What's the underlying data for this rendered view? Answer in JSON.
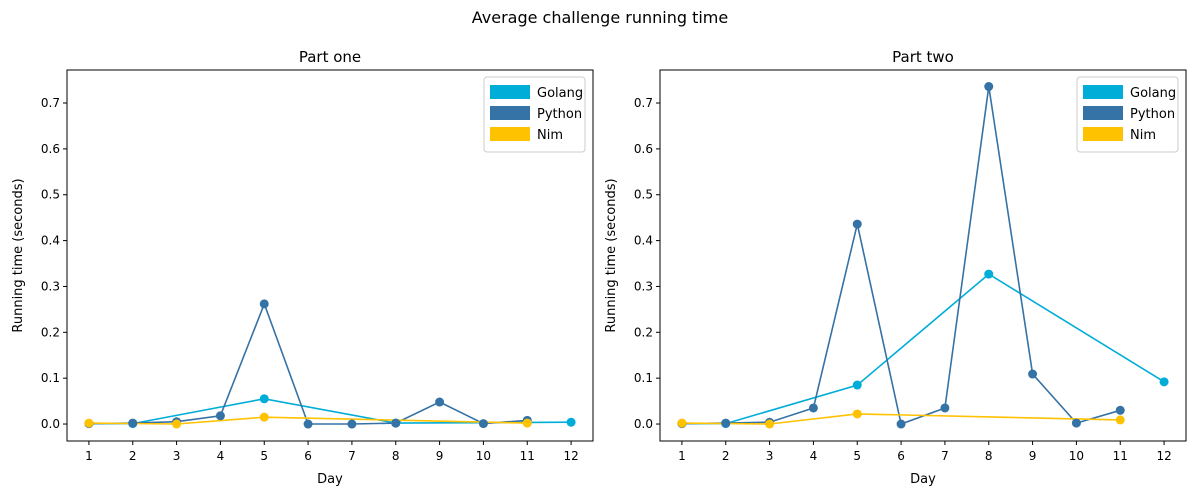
{
  "figure": {
    "title": "Average challenge running time"
  },
  "colors": {
    "Golang": "#00add8",
    "Python": "#3572a5",
    "Nim": "#ffc200"
  },
  "chart_data": [
    {
      "type": "line",
      "title": "Part one",
      "xlabel": "Day",
      "ylabel": "Running time (seconds)",
      "xlim": [
        0.5,
        12.5
      ],
      "ylim": [
        -0.037,
        0.772
      ],
      "xticks": [
        1,
        2,
        3,
        4,
        5,
        6,
        7,
        8,
        9,
        10,
        11,
        12
      ],
      "yticks": [
        0.0,
        0.1,
        0.2,
        0.3,
        0.4,
        0.5,
        0.6,
        0.7
      ],
      "ytick_labels": [
        "0.0",
        "0.1",
        "0.2",
        "0.3",
        "0.4",
        "0.5",
        "0.6",
        "0.7"
      ],
      "grid": false,
      "legend_position": "top-right",
      "series": [
        {
          "name": "Golang",
          "color": "#00add8",
          "x": [
            1,
            2,
            5,
            8,
            12
          ],
          "y": [
            0.001,
            0.001,
            0.055,
            0.002,
            0.004
          ]
        },
        {
          "name": "Python",
          "color": "#3572a5",
          "x": [
            1,
            2,
            3,
            4,
            5,
            6,
            7,
            8,
            9,
            10,
            11
          ],
          "y": [
            0.001,
            0.002,
            0.005,
            0.018,
            0.262,
            0.0,
            0.0,
            0.002,
            0.048,
            0.001,
            0.008
          ]
        },
        {
          "name": "Nim",
          "color": "#ffc200",
          "x": [
            1,
            3,
            5,
            11
          ],
          "y": [
            0.002,
            0.0,
            0.015,
            0.002
          ]
        }
      ]
    },
    {
      "type": "line",
      "title": "Part two",
      "xlabel": "Day",
      "ylabel": "Running time (seconds)",
      "xlim": [
        0.5,
        12.5
      ],
      "ylim": [
        -0.037,
        0.772
      ],
      "xticks": [
        1,
        2,
        3,
        4,
        5,
        6,
        7,
        8,
        9,
        10,
        11,
        12
      ],
      "yticks": [
        0.0,
        0.1,
        0.2,
        0.3,
        0.4,
        0.5,
        0.6,
        0.7
      ],
      "ytick_labels": [
        "0.0",
        "0.1",
        "0.2",
        "0.3",
        "0.4",
        "0.5",
        "0.6",
        "0.7"
      ],
      "grid": false,
      "legend_position": "top-right",
      "series": [
        {
          "name": "Golang",
          "color": "#00add8",
          "x": [
            1,
            2,
            5,
            8,
            12
          ],
          "y": [
            0.001,
            0.001,
            0.085,
            0.327,
            0.092
          ]
        },
        {
          "name": "Python",
          "color": "#3572a5",
          "x": [
            1,
            2,
            3,
            4,
            5,
            6,
            7,
            8,
            9,
            10,
            11
          ],
          "y": [
            0.001,
            0.002,
            0.004,
            0.035,
            0.436,
            0.0,
            0.035,
            0.736,
            0.109,
            0.002,
            0.03
          ]
        },
        {
          "name": "Nim",
          "color": "#ffc200",
          "x": [
            1,
            3,
            5,
            11
          ],
          "y": [
            0.002,
            0.0,
            0.022,
            0.009
          ]
        }
      ]
    }
  ]
}
